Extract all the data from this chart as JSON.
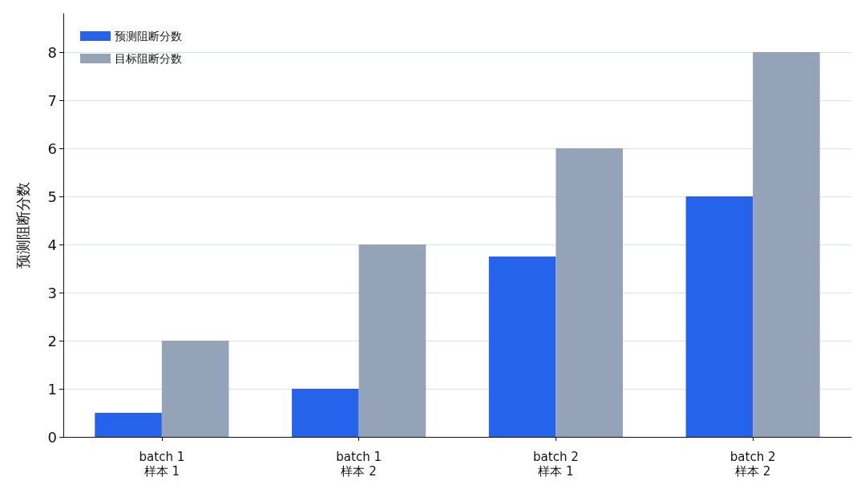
{
  "chart_data": {
    "type": "bar",
    "ylabel": "预测阻断分数",
    "categories": [
      "batch 1\n样本 1",
      "batch 1\n样本 2",
      "batch 2\n样本 1",
      "batch 2\n样本 2"
    ],
    "series": [
      {
        "name": "预测阻断分数",
        "color": "#2563eb",
        "values": [
          0.5,
          1,
          3.75,
          5
        ]
      },
      {
        "name": "目标阻断分数",
        "color": "#94a3b8",
        "values": [
          2,
          4,
          6,
          8
        ]
      }
    ],
    "ylim": [
      0,
      8.8
    ],
    "yticks": [
      0,
      1,
      2,
      3,
      4,
      5,
      6,
      7,
      8
    ],
    "grid": "y",
    "legend": "top left"
  }
}
